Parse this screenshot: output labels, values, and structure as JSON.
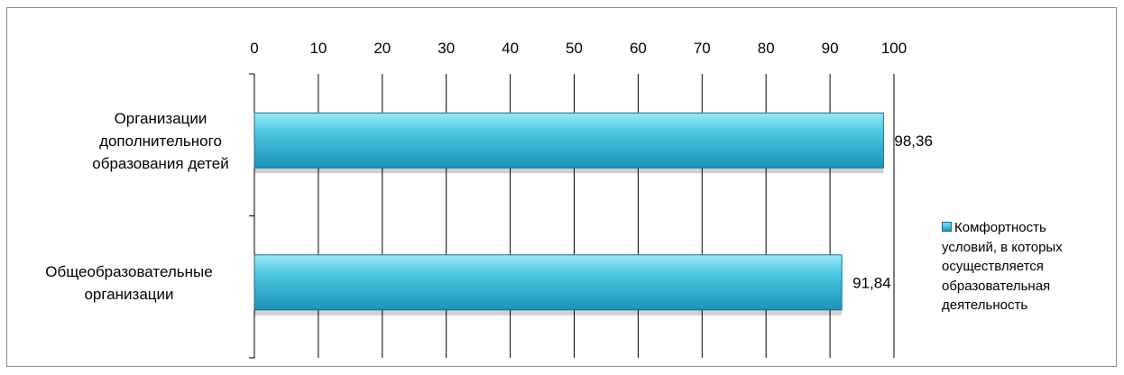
{
  "chart_data": {
    "type": "bar",
    "orientation": "horizontal",
    "categories": [
      "Организации дополнительного образования детей",
      "Общеобразовательные организации"
    ],
    "category_lines": [
      [
        "Организации",
        "дополнительного",
        "образования детей"
      ],
      [
        "Общеобразовательные",
        "организации"
      ]
    ],
    "series": [
      {
        "name": "Комфортность условий, в которых осуществляется образовательная деятельность",
        "values": [
          98.36,
          91.84
        ],
        "value_labels": [
          "98,36",
          "91,84"
        ]
      }
    ],
    "xlim": [
      0,
      100
    ],
    "xticks": [
      "0",
      "10",
      "20",
      "30",
      "40",
      "50",
      "60",
      "70",
      "80",
      "90",
      "100"
    ],
    "xaxis_position": "top",
    "grid": "vertical",
    "legend_position": "right",
    "colors": {
      "bar_light": "#80e1f3",
      "bar_dark": "#1a93b5",
      "bar_edge": "#15708a",
      "grid": "#000000"
    }
  }
}
